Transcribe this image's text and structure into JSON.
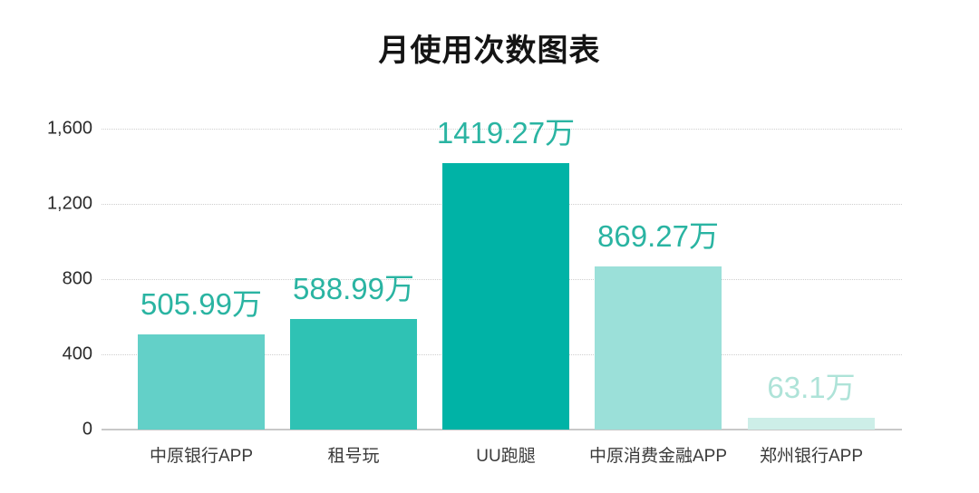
{
  "page": {
    "title": "月使用次数图表"
  },
  "chart_data": {
    "type": "bar",
    "title": "月使用次数图表",
    "xlabel": "",
    "ylabel": "",
    "unit": "万",
    "categories": [
      "中原银行APP",
      "租号玩",
      "UU跑腿",
      "中原消费金融APP",
      "郑州银行APP"
    ],
    "values": [
      505.99,
      588.99,
      1419.27,
      869.27,
      63.1
    ],
    "value_labels": [
      "505.99万",
      "588.99万",
      "1419.27万",
      "869.27万",
      "63.1万"
    ],
    "bar_colors": [
      "#63d0c8",
      "#2fc2b4",
      "#00b3a6",
      "#9be0d9",
      "#cdeee8"
    ],
    "value_label_colors": [
      "#2ab4a2",
      "#2ab4a2",
      "#2ab4a2",
      "#2ab4a2",
      "#aee3d8"
    ],
    "ylim": [
      0,
      1600
    ],
    "yticks": [
      0,
      400,
      800,
      1200,
      1600
    ],
    "ytick_labels": [
      "0",
      "400",
      "800",
      "1,200",
      "1,600"
    ],
    "grid": "horizontal-dotted",
    "legend_position": "none",
    "background": "#ffffff"
  }
}
